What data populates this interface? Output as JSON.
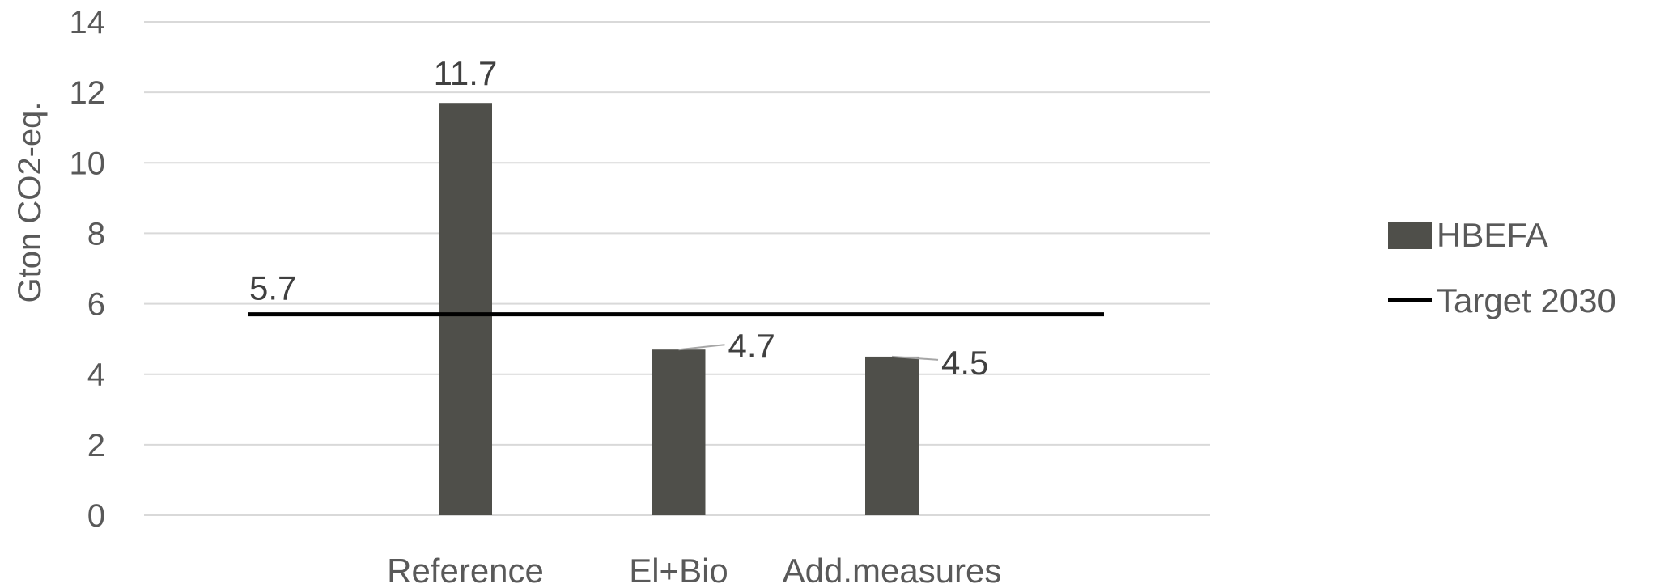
{
  "chart_data": {
    "type": "bar",
    "ylabel": "Gton CO2-eq.",
    "ylim": [
      0,
      14
    ],
    "yticks": [
      0,
      2,
      4,
      6,
      8,
      10,
      12,
      14
    ],
    "grid": true,
    "legend_position": "right",
    "categories": [
      "Reference",
      "El+Bio",
      "Add.measures"
    ],
    "series": [
      {
        "name": "HBEFA",
        "type": "bar",
        "values": [
          11.7,
          4.7,
          4.5
        ],
        "labels": [
          "11.7",
          "4.7",
          "4.5"
        ],
        "color": "#4f4f4a"
      },
      {
        "name": "Target 2030",
        "type": "line",
        "value": 5.7,
        "label": "5.7",
        "color": "#000000"
      }
    ]
  }
}
